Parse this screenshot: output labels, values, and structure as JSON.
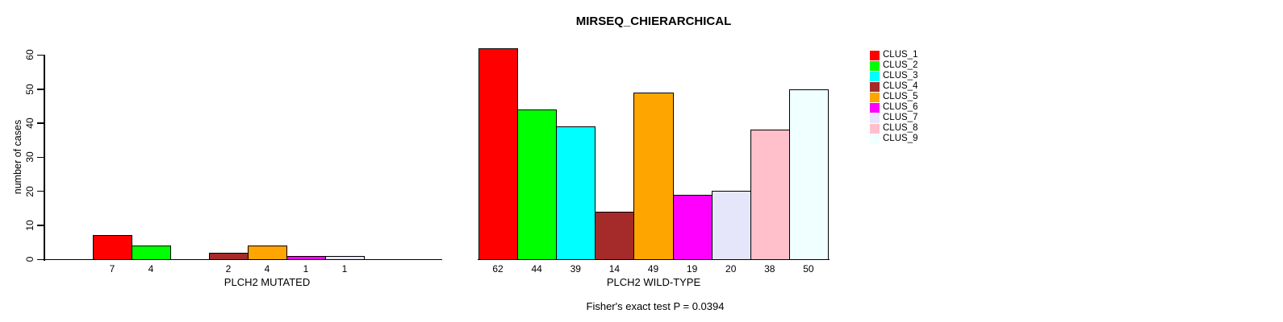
{
  "title": "MIRSEQ_CHIERARCHICAL",
  "footnote": "Fisher's exact test P = 0.0394",
  "y_axis": {
    "label": "number of cases",
    "ticks": [
      0,
      10,
      20,
      30,
      40,
      50,
      60
    ]
  },
  "legend": {
    "items": [
      {
        "label": "CLUS_1",
        "color": "#FF0000"
      },
      {
        "label": "CLUS_2",
        "color": "#00FF00"
      },
      {
        "label": "CLUS_3",
        "color": "#00FFFF"
      },
      {
        "label": "CLUS_4",
        "color": "#A52A2A"
      },
      {
        "label": "CLUS_5",
        "color": "#FFA500"
      },
      {
        "label": "CLUS_6",
        "color": "#FF00FF"
      },
      {
        "label": "CLUS_7",
        "color": "#E6E6FA"
      },
      {
        "label": "CLUS_8",
        "color": "#FFC0CB"
      },
      {
        "label": "CLUS_9",
        "color": "#F0FFFF"
      }
    ]
  },
  "chart_data": {
    "type": "bar",
    "title": "MIRSEQ_CHIERARCHICAL",
    "ylabel": "number of cases",
    "ylim": [
      0,
      60
    ],
    "yticks": [
      0,
      10,
      20,
      30,
      40,
      50,
      60
    ],
    "grid": false,
    "legend_position": "right",
    "categories": [
      "CLUS_1",
      "CLUS_2",
      "CLUS_3",
      "CLUS_4",
      "CLUS_5",
      "CLUS_6",
      "CLUS_7",
      "CLUS_8",
      "CLUS_9"
    ],
    "series": [
      {
        "name": "PLCH2 MUTATED",
        "values": [
          7,
          4,
          0,
          2,
          4,
          1,
          1,
          0,
          0
        ]
      },
      {
        "name": "PLCH2 WILD-TYPE",
        "values": [
          62,
          44,
          39,
          14,
          49,
          19,
          20,
          38,
          50
        ]
      }
    ],
    "bar_colors": [
      "#FF0000",
      "#00FF00",
      "#00FFFF",
      "#A52A2A",
      "#FFA500",
      "#FF00FF",
      "#E6E6FA",
      "#FFC0CB",
      "#F0FFFF"
    ],
    "annotation": "Fisher's exact test P = 0.0394",
    "bar_value_labels_shown": "non-zero values only"
  }
}
